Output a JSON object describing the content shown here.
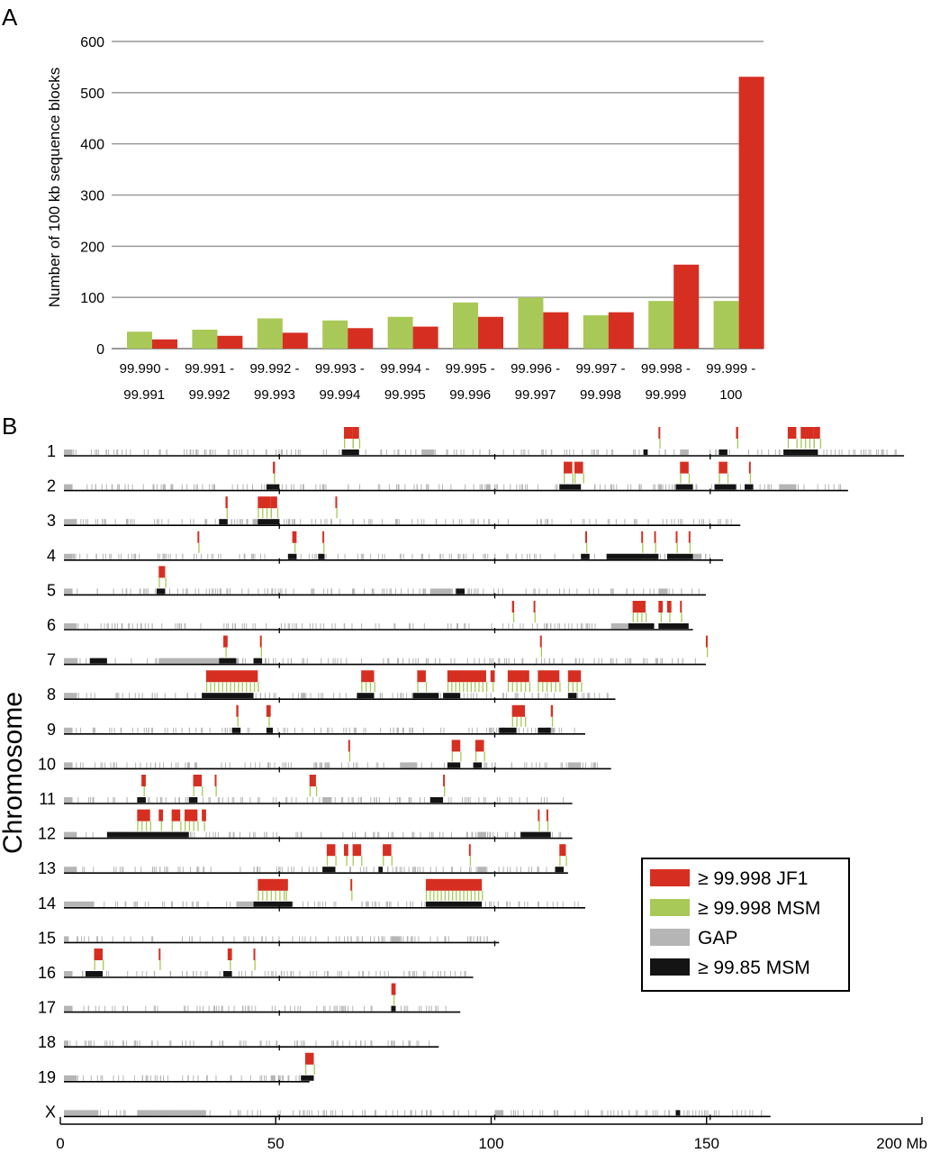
{
  "figure": {
    "panel_a_label": "A",
    "panel_b_label": "B"
  },
  "colors": {
    "jf1": "#d62f22",
    "msm": "#a8c957",
    "gap": "#b5b5b5",
    "msm85": "#141414",
    "grid": "#999999"
  },
  "chart_data": [
    {
      "type": "bar",
      "ylabel": "Number of 100 kb sequence blocks",
      "ylim": [
        0,
        600
      ],
      "yticks": [
        "0",
        "100",
        "200",
        "300",
        "400",
        "500",
        "600"
      ],
      "grid": true,
      "categories": [
        [
          "99.990 -",
          "99.991"
        ],
        [
          "99.991 -",
          "99.992"
        ],
        [
          "99.992 -",
          "99.993"
        ],
        [
          "99.993 -",
          "99.994"
        ],
        [
          "99.994 -",
          "99.995"
        ],
        [
          "99.995 -",
          "99.996"
        ],
        [
          "99.996 -",
          "99.997"
        ],
        [
          "99.997 -",
          "99.998"
        ],
        [
          "99.998 -",
          "99.999"
        ],
        [
          "99.999 -",
          "100"
        ]
      ],
      "series": [
        {
          "color": "#a8c957",
          "values": [
            33,
            37,
            59,
            55,
            62,
            90,
            100,
            65,
            93,
            93
          ]
        },
        {
          "color": "#d62f22",
          "values": [
            18,
            25,
            31,
            40,
            43,
            62,
            71,
            71,
            164,
            531
          ]
        }
      ]
    },
    {
      "type": "genome-track",
      "ylabel": "Chromosome",
      "xlim": [
        0,
        200
      ],
      "x_ticks": [
        "0",
        "50",
        "100",
        "150",
        "200 Mb"
      ],
      "x_tick_values": [
        0,
        50,
        100,
        150,
        200
      ],
      "legend": {
        "position": "right",
        "items": [
          {
            "label": "≥ 99.998 JF1",
            "color": "#d62f22"
          },
          {
            "label": "≥ 99.998 MSM",
            "color": "#a8c957"
          },
          {
            "label": "GAP",
            "color": "#b5b5b5"
          },
          {
            "label": "≥ 99.85 MSM",
            "color": "#141414"
          }
        ]
      },
      "chromosomes": [
        {
          "name": "1",
          "length": 195,
          "jf1": [
            [
              65,
              67
            ],
            [
              67,
              68.5
            ],
            [
              138,
              138.3
            ],
            [
              156,
              156.5
            ],
            [
              168,
              170
            ],
            [
              171,
              174
            ],
            [
              174,
              175.5
            ]
          ],
          "msm85": [
            [
              64.5,
              68.5
            ],
            [
              134.5,
              135.5
            ],
            [
              152,
              154
            ],
            [
              167,
              175
            ]
          ],
          "gap": [
            [
              0,
              2
            ],
            [
              83,
              86
            ],
            [
              143,
              145
            ],
            [
              168,
              170
            ]
          ]
        },
        {
          "name": "2",
          "length": 182,
          "jf1": [
            [
              48.5,
              49
            ],
            [
              116,
              118
            ],
            [
              118.5,
              120.5
            ],
            [
              143,
              145
            ],
            [
              152,
              154
            ],
            [
              159,
              159.3
            ]
          ],
          "msm85": [
            [
              47,
              50
            ],
            [
              115,
              120
            ],
            [
              142,
              146
            ],
            [
              151,
              156
            ],
            [
              158,
              160
            ]
          ],
          "gap": [
            [
              0,
              2
            ],
            [
              98,
              99
            ],
            [
              166,
              170
            ]
          ]
        },
        {
          "name": "3",
          "length": 157,
          "jf1": [
            [
              37.5,
              38
            ],
            [
              45,
              48
            ],
            [
              48,
              49.5
            ],
            [
              63,
              63.3
            ]
          ],
          "msm85": [
            [
              36,
              38
            ],
            [
              45,
              50
            ]
          ],
          "gap": [
            [
              0,
              3
            ],
            [
              44,
              46
            ]
          ]
        },
        {
          "name": "4",
          "length": 153,
          "jf1": [
            [
              31,
              31.3
            ],
            [
              53,
              54
            ],
            [
              60,
              60.3
            ],
            [
              121,
              121.3
            ],
            [
              134,
              134.3
            ],
            [
              137,
              137.3
            ],
            [
              142,
              142.3
            ],
            [
              145,
              145.3
            ]
          ],
          "msm85": [
            [
              52,
              54
            ],
            [
              59,
              60.5
            ],
            [
              120,
              122
            ],
            [
              126,
              138
            ],
            [
              140,
              146
            ]
          ],
          "gap": [
            [
              0,
              2
            ],
            [
              126,
              134
            ],
            [
              146,
              148
            ]
          ]
        },
        {
          "name": "5",
          "length": 149,
          "jf1": [
            [
              22,
              23.5
            ]
          ],
          "msm85": [
            [
              21.5,
              23.5
            ],
            [
              91,
              93
            ]
          ],
          "gap": [
            [
              0,
              2
            ],
            [
              85,
              90
            ],
            [
              138,
              140
            ]
          ]
        },
        {
          "name": "6",
          "length": 146,
          "jf1": [
            [
              104,
              104.5
            ],
            [
              109,
              109.3
            ],
            [
              132,
              135
            ],
            [
              138,
              139
            ],
            [
              140,
              141
            ],
            [
              143,
              143.3
            ]
          ],
          "msm85": [
            [
              131,
              137
            ],
            [
              138,
              145
            ]
          ],
          "gap": [
            [
              0,
              3
            ],
            [
              127,
              131
            ]
          ]
        },
        {
          "name": "7",
          "length": 149,
          "jf1": [
            [
              37,
              38
            ],
            [
              45.5,
              45.8
            ],
            [
              110.5,
              110.8
            ],
            [
              149,
              149.3
            ]
          ],
          "msm85": [
            [
              6,
              10
            ],
            [
              36,
              40
            ],
            [
              44,
              46
            ]
          ],
          "gap": [
            [
              0,
              3
            ],
            [
              22,
              36
            ]
          ]
        },
        {
          "name": "8",
          "length": 128,
          "jf1": [
            [
              33,
              45
            ],
            [
              69,
              72
            ],
            [
              82,
              84
            ],
            [
              89,
              98
            ],
            [
              99,
              100
            ],
            [
              103,
              108
            ],
            [
              110,
              115
            ],
            [
              117,
              120
            ]
          ],
          "msm85": [
            [
              32,
              44
            ],
            [
              68,
              72
            ],
            [
              81,
              87
            ],
            [
              88,
              92
            ],
            [
              117,
              119
            ]
          ],
          "gap": [
            [
              0,
              3
            ],
            [
              55,
              56
            ]
          ]
        },
        {
          "name": "9",
          "length": 121,
          "jf1": [
            [
              40,
              40.5
            ],
            [
              47,
              48
            ],
            [
              104,
              107
            ],
            [
              113,
              113.5
            ]
          ],
          "msm85": [
            [
              39,
              41
            ],
            [
              47,
              48.5
            ],
            [
              101,
              105
            ],
            [
              110,
              113
            ]
          ],
          "gap": [
            [
              0,
              2
            ],
            [
              112,
              114
            ]
          ]
        },
        {
          "name": "10",
          "length": 127,
          "jf1": [
            [
              66,
              66.3
            ],
            [
              90,
              92
            ],
            [
              95.5,
              97.5
            ]
          ],
          "msm85": [
            [
              89,
              92
            ],
            [
              95,
              97
            ]
          ],
          "gap": [
            [
              0,
              2
            ],
            [
              78,
              82
            ],
            [
              117,
              120
            ]
          ]
        },
        {
          "name": "11",
          "length": 118,
          "jf1": [
            [
              18,
              19
            ],
            [
              30,
              32
            ],
            [
              35,
              35.3
            ],
            [
              57,
              58.5
            ],
            [
              88,
              88.3
            ]
          ],
          "msm85": [
            [
              17,
              19
            ],
            [
              29,
              31
            ],
            [
              85,
              88
            ]
          ],
          "gap": [
            [
              0,
              2
            ],
            [
              60,
              62
            ]
          ]
        },
        {
          "name": "12",
          "length": 118,
          "jf1": [
            [
              17,
              20
            ],
            [
              22,
              23
            ],
            [
              25,
              27
            ],
            [
              28,
              31
            ],
            [
              32,
              33
            ],
            [
              110,
              110.3
            ],
            [
              112,
              112.3
            ]
          ],
          "msm85": [
            [
              10,
              29
            ],
            [
              106,
              113
            ]
          ],
          "gap": [
            [
              0,
              3
            ],
            [
              96,
              98
            ]
          ]
        },
        {
          "name": "13",
          "length": 117,
          "jf1": [
            [
              61,
              63
            ],
            [
              65,
              66
            ],
            [
              67,
              69
            ],
            [
              74,
              76
            ],
            [
              94,
              94.3
            ],
            [
              115,
              116.5
            ]
          ],
          "msm85": [
            [
              60,
              63
            ],
            [
              73,
              74
            ],
            [
              114,
              116
            ]
          ],
          "gap": [
            [
              0,
              3
            ],
            [
              96,
              98
            ]
          ]
        },
        {
          "name": "14",
          "length": 121,
          "jf1": [
            [
              45,
              51
            ],
            [
              51,
              52
            ],
            [
              84,
              97
            ],
            [
              66.5,
              66.8
            ]
          ],
          "msm85": [
            [
              44,
              53
            ],
            [
              84,
              97
            ]
          ],
          "gap": [
            [
              0,
              7
            ],
            [
              40,
              44
            ]
          ]
        },
        {
          "name": "15",
          "length": 101,
          "jf1": [],
          "msm85": [],
          "gap": [
            [
              0,
              1
            ],
            [
              76,
              78
            ]
          ]
        },
        {
          "name": "16",
          "length": 95,
          "jf1": [
            [
              7,
              9
            ],
            [
              22,
              22.3
            ],
            [
              38,
              39
            ],
            [
              44,
              44.3
            ]
          ],
          "msm85": [
            [
              5,
              9
            ],
            [
              37,
              39
            ]
          ],
          "gap": [
            [
              0,
              2
            ]
          ]
        },
        {
          "name": "17",
          "length": 92,
          "jf1": [
            [
              76,
              77
            ]
          ],
          "msm85": [
            [
              76,
              77
            ]
          ],
          "gap": [
            [
              0,
              2
            ]
          ]
        },
        {
          "name": "18",
          "length": 87,
          "jf1": [],
          "msm85": [],
          "gap": [
            [
              0,
              1
            ]
          ]
        },
        {
          "name": "19",
          "length": 57,
          "jf1": [
            [
              56,
              58
            ]
          ],
          "msm85": [
            [
              55,
              58
            ]
          ],
          "gap": [
            [
              0,
              3
            ],
            [
              48,
              49
            ]
          ]
        },
        {
          "name": "X",
          "length": 164,
          "jf1": [],
          "msm85": [
            [
              142,
              143
            ]
          ],
          "gap": [
            [
              0,
              8
            ],
            [
              17,
              33
            ],
            [
              100,
              102
            ]
          ]
        }
      ]
    }
  ]
}
